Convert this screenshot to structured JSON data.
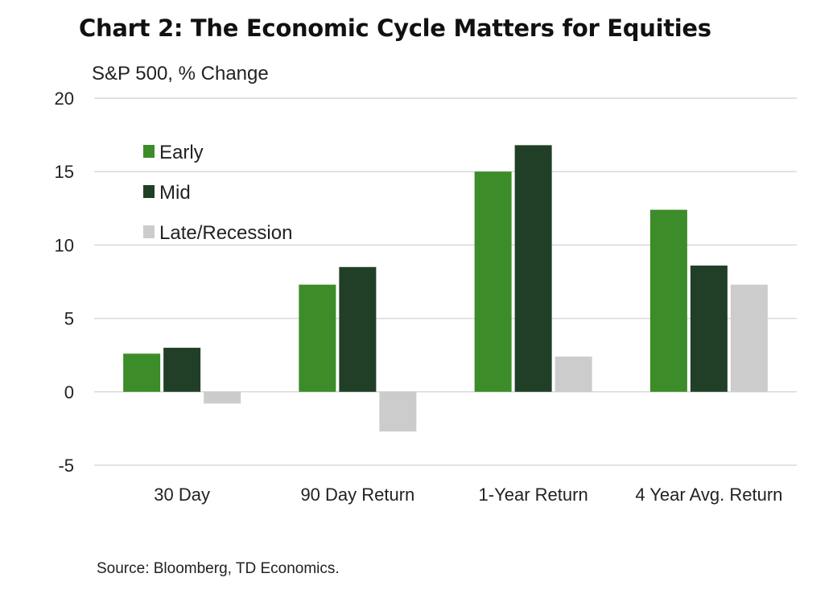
{
  "chart_data": {
    "type": "bar",
    "title": "Chart 2: The Economic Cycle Matters for Equities",
    "ylabel": "S&P 500, % Change",
    "source": "Source: Bloomberg, TD Economics.",
    "categories": [
      "30 Day",
      "90 Day Return",
      "1-Year Return",
      "4 Year Avg. Return"
    ],
    "ylim": [
      -5,
      20
    ],
    "yticks": [
      "20",
      "15",
      "10",
      "5",
      "0",
      "-5"
    ],
    "yticks_values": [
      20,
      15,
      10,
      5,
      0,
      -5
    ],
    "grid": true,
    "legend_position": "top-left",
    "series": [
      {
        "name": "Early",
        "color": "#3c8c2a",
        "values": [
          2.6,
          7.3,
          15.0,
          12.4
        ]
      },
      {
        "name": "Mid",
        "color": "#213f26",
        "values": [
          3.0,
          8.5,
          16.8,
          8.6
        ]
      },
      {
        "name": "Late/Recession",
        "color": "#cccccc",
        "values": [
          -0.8,
          -2.7,
          2.4,
          7.3
        ]
      }
    ]
  }
}
